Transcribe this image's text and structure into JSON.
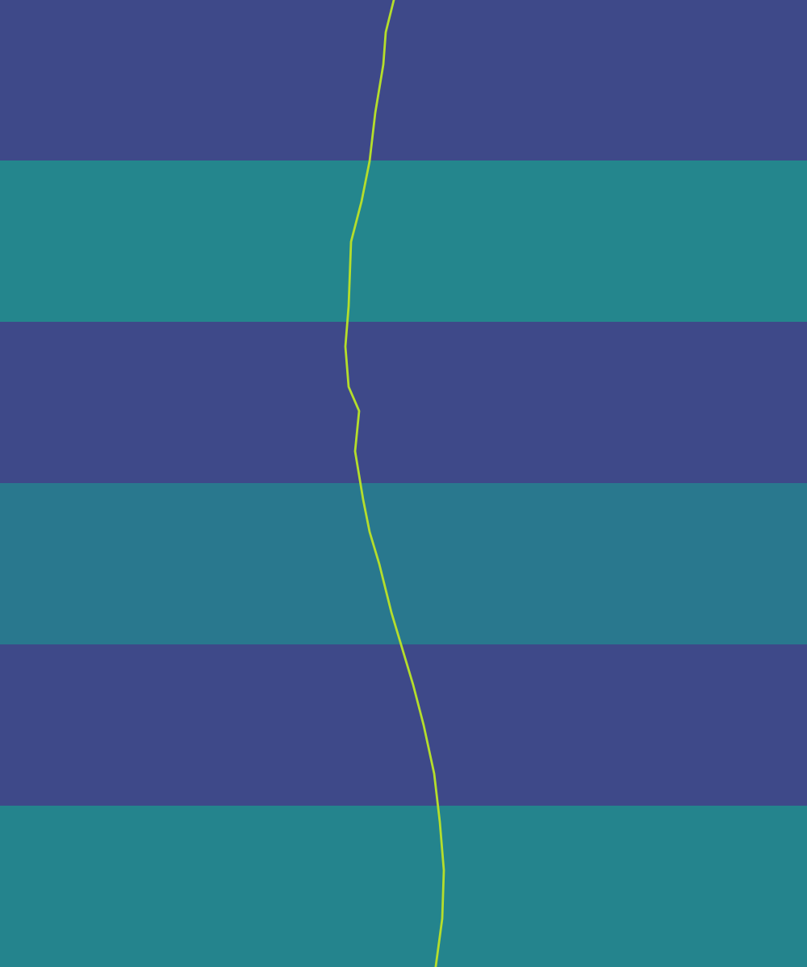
{
  "chart_data": {
    "type": "heatmap",
    "cells": [
      [
        0.22
      ],
      [
        0.46
      ],
      [
        0.22
      ],
      [
        0.4
      ],
      [
        0.22
      ],
      [
        0.45
      ]
    ],
    "clim": [
      0,
      1
    ],
    "xlim": [
      0,
      250
    ],
    "ylim": [
      300,
      0
    ],
    "tick_labels": false,
    "series": [
      {
        "type": "line",
        "color": "#b5de2b",
        "line_style": "solid",
        "x": [
          122,
          119.5,
          118.75,
          116.25,
          114.5,
          112,
          108.75,
          108,
          107,
          108,
          111.25,
          110,
          112.5,
          114.5,
          117.5,
          121.25,
          125,
          128,
          131.25,
          134.5,
          136.25,
          137.5,
          137,
          135
        ],
        "values": [
          0,
          10,
          20,
          35,
          50,
          62.5,
          75,
          95,
          107.5,
          120,
          127.5,
          140,
          155,
          165,
          175,
          190,
          202.5,
          212.5,
          225,
          240,
          255,
          270,
          285,
          299.75
        ]
      }
    ]
  }
}
